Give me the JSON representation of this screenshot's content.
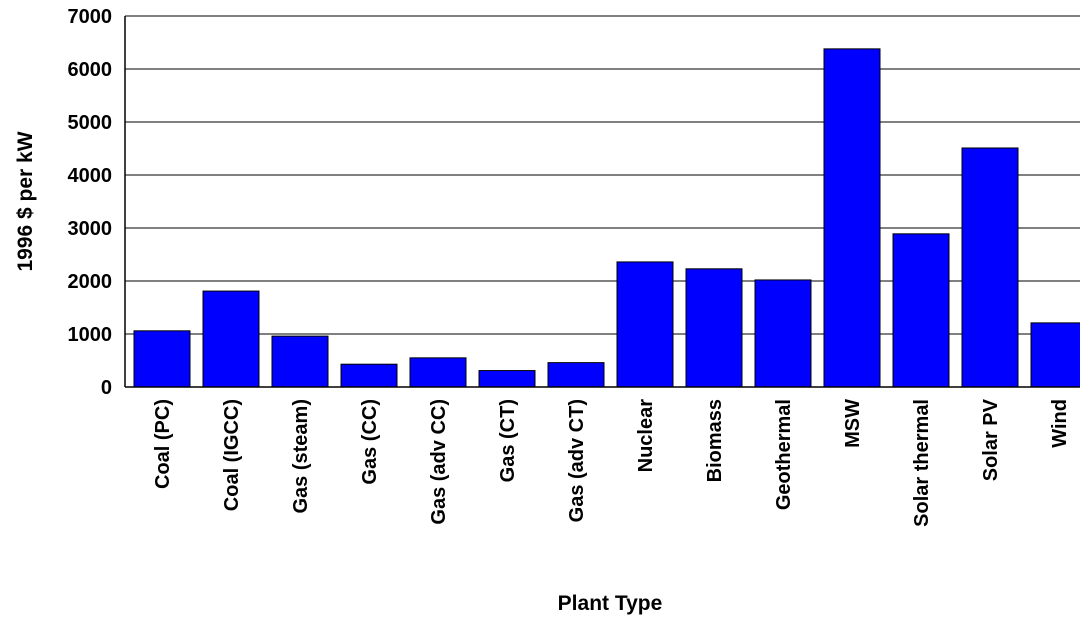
{
  "chart_data": {
    "type": "bar",
    "title": "",
    "xlabel": "Plant Type",
    "ylabel": "1996 $ per kW",
    "ylim": [
      0,
      7000
    ],
    "yticks": [
      0,
      1000,
      2000,
      3000,
      4000,
      5000,
      6000,
      7000
    ],
    "grid": true,
    "bar_color": "#0000FF",
    "categories": [
      "Coal (PC)",
      "Coal (IGCC)",
      "Gas (steam)",
      "Gas (CC)",
      "Gas (adv CC)",
      "Gas (CT)",
      "Gas (adv CT)",
      "Nuclear",
      "Biomass",
      "Geothermal",
      "MSW",
      "Solar thermal",
      "Solar PV",
      "Wind"
    ],
    "values": [
      1060,
      1810,
      960,
      430,
      550,
      310,
      460,
      2360,
      2230,
      2020,
      6380,
      2890,
      4510,
      1210
    ]
  }
}
